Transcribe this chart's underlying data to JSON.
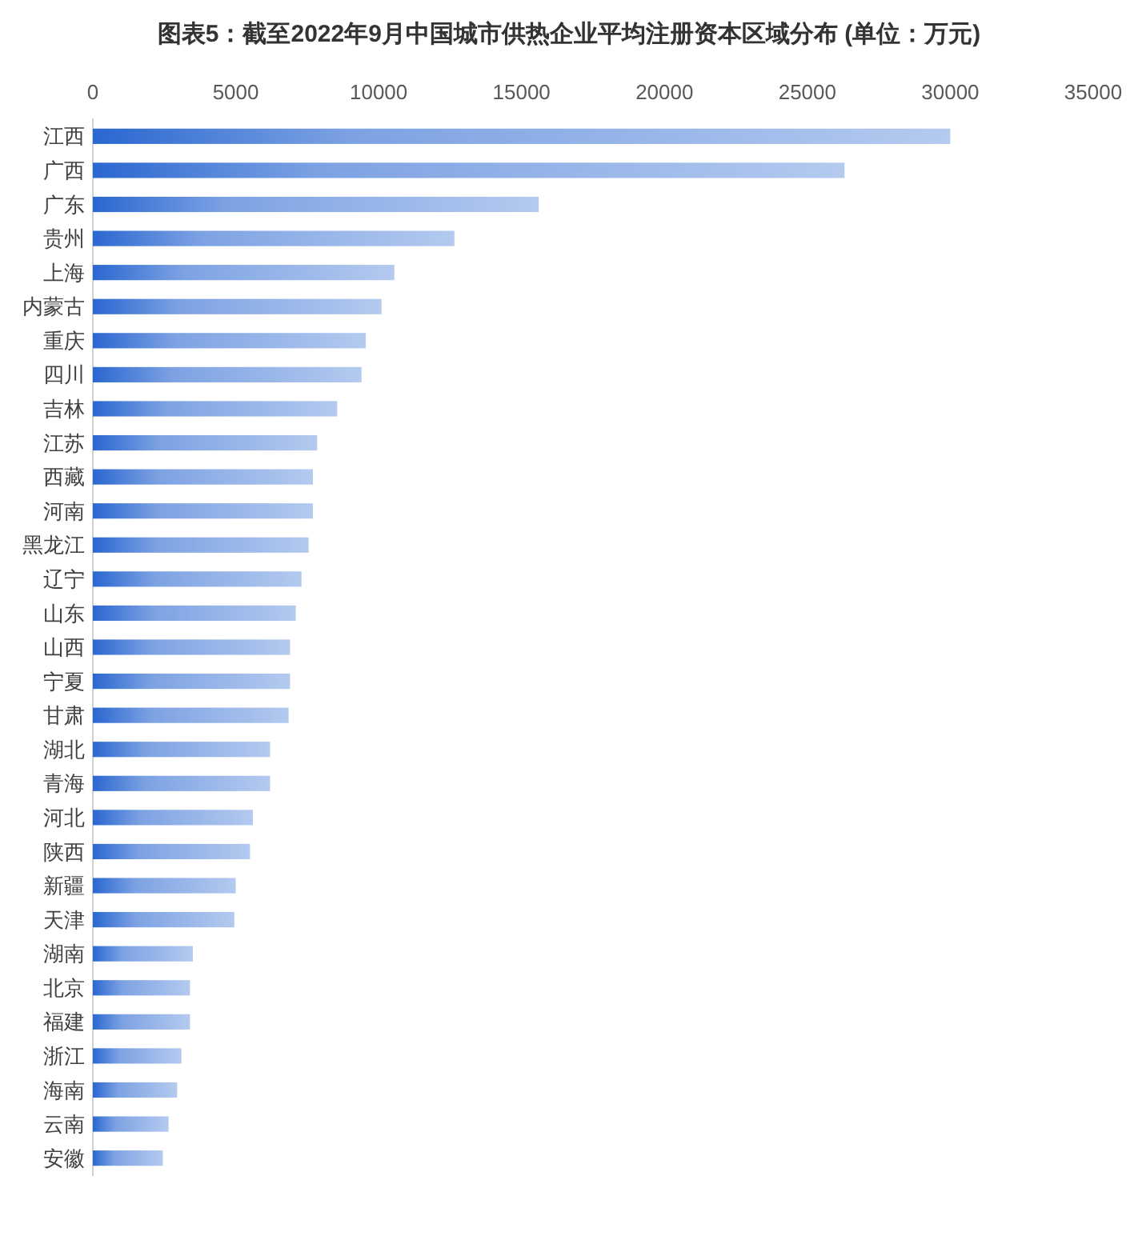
{
  "chart_data": {
    "type": "bar",
    "orientation": "horizontal",
    "title": "图表5：截至2022年9月中国城市供热企业平均注册资本区域分布 (单位：万元)",
    "categories": [
      "江西",
      "广西",
      "广东",
      "贵州",
      "上海",
      "内蒙古",
      "重庆",
      "四川",
      "吉林",
      "江苏",
      "西藏",
      "河南",
      "黑龙江",
      "辽宁",
      "山东",
      "山西",
      "宁夏",
      "甘肃",
      "湖北",
      "青海",
      "河北",
      "陕西",
      "新疆",
      "天津",
      "湖南",
      "北京",
      "福建",
      "浙江",
      "海南",
      "云南",
      "安徽"
    ],
    "values": [
      30000,
      26300,
      15600,
      12650,
      10550,
      10100,
      9550,
      9400,
      8550,
      7850,
      7700,
      7700,
      7550,
      7300,
      7100,
      6900,
      6900,
      6850,
      6200,
      6200,
      5600,
      5500,
      5000,
      4950,
      3500,
      3400,
      3400,
      3100,
      2950,
      2650,
      2450
    ],
    "color": "#2a67d0",
    "xlim": [
      0,
      35000
    ],
    "xticks": [
      0,
      5000,
      10000,
      15000,
      20000,
      25000,
      30000,
      35000
    ],
    "grid": false
  }
}
